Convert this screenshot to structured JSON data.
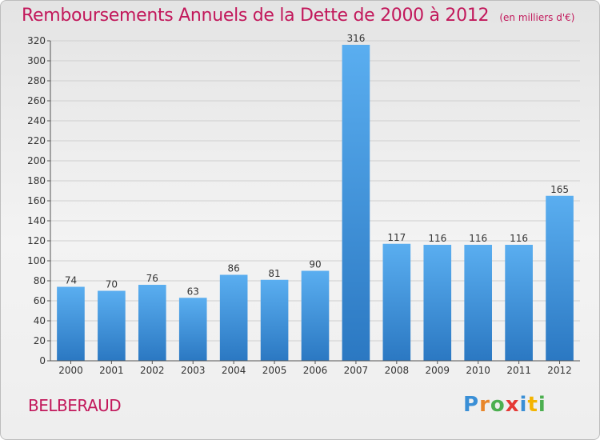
{
  "title": "Remboursements Annuels de la Dette de 2000 à 2012",
  "subtitle": "(en milliers d'€)",
  "commune": "BELBERAUD",
  "logo": {
    "letters": [
      "P",
      "r",
      "o",
      "x",
      "i",
      "t",
      "i"
    ],
    "colors": [
      "#3a8fd6",
      "#e8862a",
      "#4caf50",
      "#e53935",
      "#3a8fd6",
      "#f4b400",
      "#4caf50"
    ]
  },
  "chart_data": {
    "type": "bar",
    "categories": [
      "2000",
      "2001",
      "2002",
      "2003",
      "2004",
      "2005",
      "2006",
      "2007",
      "2008",
      "2009",
      "2010",
      "2011",
      "2012"
    ],
    "values": [
      74,
      70,
      76,
      63,
      86,
      81,
      90,
      316,
      117,
      116,
      116,
      116,
      165
    ],
    "ylim": [
      0,
      320
    ],
    "yticks": [
      0,
      20,
      40,
      60,
      80,
      100,
      120,
      140,
      160,
      180,
      200,
      220,
      240,
      260,
      280,
      300,
      320
    ],
    "grid": true,
    "bar_color": "#3b8fd8"
  }
}
